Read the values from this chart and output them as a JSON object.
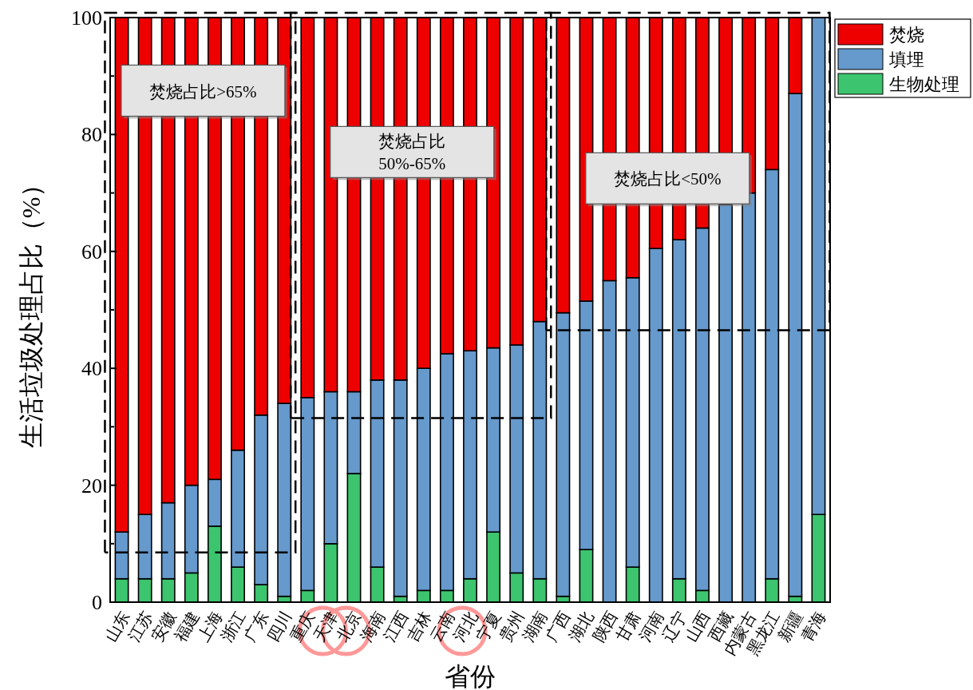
{
  "chart_data": {
    "type": "bar",
    "stacked": true,
    "categories": [
      "山东",
      "江苏",
      "安徽",
      "福建",
      "上海",
      "浙江",
      "广东",
      "四川",
      "重庆",
      "天津",
      "北京",
      "海南",
      "江西",
      "吉林",
      "云南",
      "河北",
      "宁夏",
      "贵州",
      "湖南",
      "广西",
      "湖北",
      "陕西",
      "甘肃",
      "河南",
      "辽宁",
      "山西",
      "西藏",
      "内蒙古",
      "黑龙江",
      "新疆",
      "青海"
    ],
    "series": [
      {
        "name": "生物处理",
        "color": "#3cc46e",
        "values": [
          4,
          4,
          4,
          5,
          13,
          6,
          3,
          1,
          2,
          10,
          22,
          6,
          1,
          2,
          2,
          4,
          12,
          5,
          4,
          1,
          9,
          0,
          6,
          0,
          4,
          2,
          0,
          0,
          4,
          1,
          15
        ]
      },
      {
        "name": "填埋",
        "color": "#6699cc",
        "values": [
          8,
          11,
          13,
          15,
          8,
          20,
          29,
          33,
          33,
          26,
          14,
          32,
          37,
          38,
          40.5,
          39,
          31.5,
          39,
          44,
          48.5,
          42.5,
          55,
          49.5,
          60.5,
          58,
          62,
          68,
          70,
          70,
          86,
          85
        ]
      },
      {
        "name": "焚烧",
        "color": "#ee0000",
        "values": [
          88,
          85,
          83,
          80,
          79,
          74,
          68,
          66,
          65,
          64,
          64,
          62,
          62,
          60,
          57.5,
          57,
          56.5,
          56,
          52,
          50.5,
          48.5,
          45,
          44.5,
          39.5,
          38,
          36,
          32,
          30,
          26,
          13,
          0
        ]
      }
    ],
    "xlabel": "省份",
    "ylabel": "生活垃圾处理占比（%）",
    "ylim": [
      0,
      100
    ],
    "yticks": [
      0,
      {
        "value": 10,
        "label": null
      },
      20,
      {
        "value": 30,
        "label": null
      },
      40,
      {
        "value": 50,
        "label": null
      },
      60,
      {
        "value": 70,
        "label": null
      },
      80,
      {
        "value": 90,
        "label": null
      },
      100
    ],
    "annotations": [
      "焚烧占比>65%",
      "焚烧占比\n50%-65%",
      "焚烧占比<50%"
    ],
    "legend": "top right",
    "grid": false
  }
}
